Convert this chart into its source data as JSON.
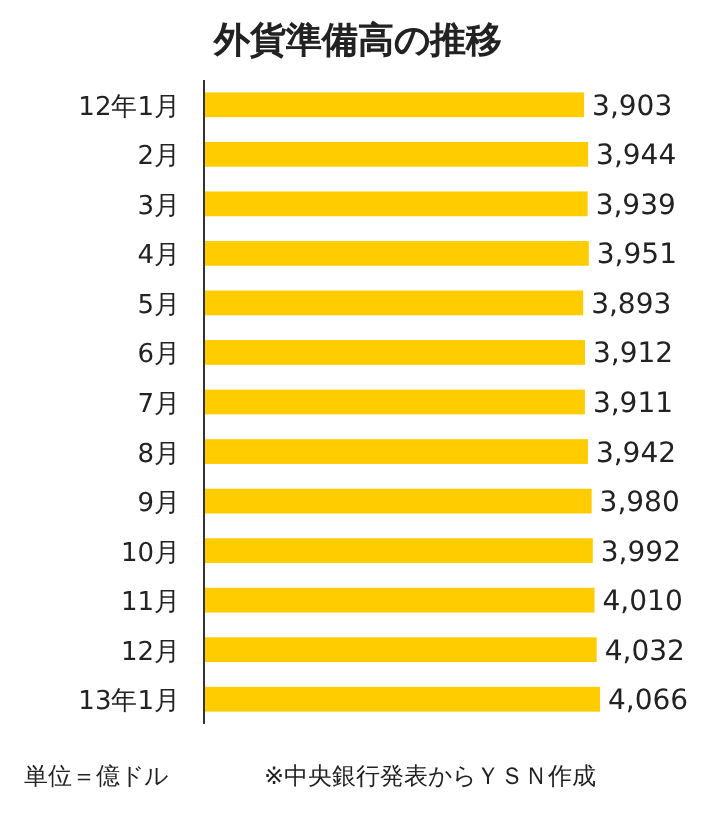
{
  "chart_data": {
    "type": "bar",
    "orientation": "horizontal",
    "title": "外貨準備高の推移",
    "categories": [
      "12年1月",
      "2月",
      "3月",
      "4月",
      "5月",
      "6月",
      "7月",
      "8月",
      "9月",
      "10月",
      "11月",
      "12月",
      "13年1月"
    ],
    "values": [
      3903,
      3944,
      3939,
      3951,
      3893,
      3912,
      3911,
      3942,
      3980,
      3992,
      4010,
      4032,
      4066
    ],
    "value_labels": [
      "3,903",
      "3,944",
      "3,939",
      "3,951",
      "3,893",
      "3,912",
      "3,911",
      "3,942",
      "3,980",
      "3,992",
      "4,010",
      "4,032",
      "4,066"
    ],
    "color": "#ffcc00",
    "tick_labels": "y",
    "annotations": [
      "単位＝億ドル",
      "※中央銀行発表からＹＳＮ作成"
    ]
  }
}
